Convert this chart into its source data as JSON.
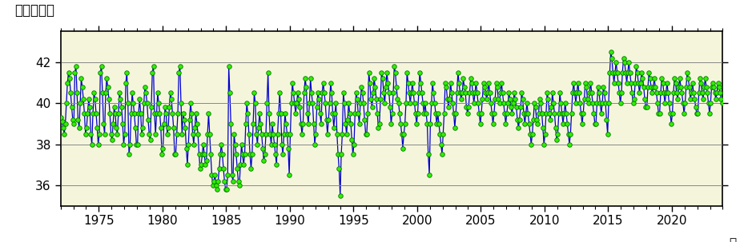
{
  "title_ylabel": "北緯（度）",
  "xlabel": "年",
  "ylim": [
    35.0,
    43.5
  ],
  "yticks": [
    36,
    38,
    40,
    42
  ],
  "xlim": [
    1972.0,
    2024.0
  ],
  "xticks": [
    1975,
    1980,
    1985,
    1990,
    1995,
    2000,
    2005,
    2010,
    2015,
    2020
  ],
  "bg_color": "#f5f5dc",
  "line_color": "#0000cc",
  "dot_color": "#33ee00",
  "dot_edge_color": "#007700",
  "figsize": [
    9.45,
    3.03
  ],
  "dpi": 100,
  "monthly_data": {
    "1972": [
      39.3,
      39.1,
      38.8,
      38.5,
      39.0,
      40.0,
      41.0,
      41.5,
      41.2,
      40.5,
      39.8,
      39.2
    ],
    "1973": [
      39.0,
      41.5,
      41.8,
      40.5,
      39.2,
      38.8,
      40.0,
      41.2,
      40.8,
      40.2,
      39.5,
      38.5
    ],
    "1974": [
      38.8,
      39.5,
      40.2,
      39.8,
      38.5,
      38.0,
      39.5,
      40.5,
      40.2,
      39.5,
      38.8,
      38.0
    ],
    "1975": [
      38.5,
      41.5,
      41.8,
      40.5,
      39.0,
      38.5,
      40.5,
      41.2,
      40.8,
      40.2,
      39.5,
      38.5
    ],
    "1976": [
      38.2,
      39.0,
      39.8,
      39.5,
      38.8,
      38.5,
      39.5,
      40.5,
      40.2,
      39.8,
      39.0,
      38.0
    ],
    "1977": [
      38.5,
      41.0,
      41.5,
      40.0,
      37.5,
      38.0,
      39.5,
      40.5,
      40.0,
      39.5,
      38.8,
      38.0
    ],
    "1978": [
      38.0,
      39.5,
      40.2,
      39.5,
      38.5,
      38.8,
      40.0,
      40.8,
      40.5,
      40.0,
      39.2,
      38.5
    ],
    "1979": [
      38.2,
      39.8,
      41.5,
      41.8,
      39.5,
      38.5,
      39.5,
      40.5,
      40.0,
      39.5,
      38.8,
      37.5
    ],
    "1980": [
      37.8,
      39.0,
      39.8,
      39.5,
      38.5,
      38.8,
      39.8,
      40.5,
      40.2,
      39.5,
      38.8,
      37.5
    ],
    "1981": [
      37.5,
      38.5,
      39.5,
      41.5,
      41.8,
      40.0,
      38.5,
      39.5,
      39.2,
      38.8,
      37.8,
      37.0
    ],
    "1982": [
      38.0,
      39.2,
      40.0,
      39.5,
      38.5,
      38.0,
      38.8,
      39.5,
      39.0,
      38.5,
      37.5,
      36.8
    ],
    "1983": [
      37.0,
      37.5,
      38.0,
      37.5,
      37.0,
      37.2,
      38.5,
      39.5,
      38.5,
      37.5,
      36.5,
      36.0
    ],
    "1984": [
      36.2,
      36.5,
      36.0,
      35.8,
      36.2,
      36.8,
      37.5,
      38.0,
      37.5,
      36.8,
      36.2,
      35.8
    ],
    "1985": [
      35.8,
      36.5,
      41.8,
      40.5,
      39.0,
      36.5,
      36.2,
      38.5,
      38.0,
      37.5,
      36.8,
      36.2
    ],
    "1986": [
      36.0,
      37.0,
      38.0,
      37.5,
      37.0,
      37.5,
      39.0,
      40.0,
      39.5,
      38.5,
      37.5,
      36.8
    ],
    "1987": [
      37.5,
      39.0,
      40.5,
      40.0,
      38.5,
      38.0,
      38.8,
      39.5,
      39.0,
      38.5,
      37.8,
      37.2
    ],
    "1988": [
      37.5,
      38.5,
      40.0,
      41.5,
      39.5,
      38.5,
      38.0,
      39.0,
      38.5,
      38.0,
      37.5,
      37.0
    ],
    "1989": [
      38.5,
      39.5,
      40.5,
      39.5,
      38.0,
      37.5,
      38.5,
      39.5,
      39.0,
      38.5,
      37.8,
      36.5
    ],
    "1990": [
      38.5,
      40.0,
      41.0,
      40.5,
      40.0,
      39.5,
      40.0,
      40.5,
      40.2,
      39.8,
      39.0,
      38.5
    ],
    "1991": [
      39.0,
      40.5,
      41.2,
      40.8,
      39.5,
      39.0,
      40.0,
      41.2,
      40.5,
      40.0,
      39.0,
      38.0
    ],
    "1992": [
      38.5,
      39.8,
      40.5,
      40.2,
      39.5,
      39.0,
      40.5,
      41.0,
      40.5,
      40.0,
      39.2,
      38.5
    ],
    "1993": [
      39.2,
      40.0,
      41.0,
      40.5,
      39.5,
      38.8,
      39.5,
      40.0,
      38.5,
      37.5,
      36.8,
      35.5
    ],
    "1994": [
      37.5,
      38.5,
      40.5,
      40.0,
      39.0,
      38.5,
      39.2,
      40.0,
      39.5,
      39.0,
      38.2,
      37.5
    ],
    "1995": [
      38.0,
      39.5,
      40.5,
      40.2,
      39.5,
      39.0,
      40.0,
      40.8,
      40.5,
      40.0,
      39.2,
      38.5
    ],
    "1996": [
      38.5,
      39.5,
      41.5,
      41.0,
      40.2,
      39.8,
      40.5,
      41.2,
      40.8,
      40.2,
      39.5,
      38.8
    ],
    "1997": [
      39.0,
      40.2,
      41.5,
      41.2,
      40.5,
      40.0,
      40.8,
      41.5,
      41.0,
      40.5,
      39.8,
      39.0
    ],
    "1998": [
      39.5,
      40.5,
      41.8,
      41.5,
      40.8,
      40.2,
      40.0,
      39.5,
      39.0,
      38.5,
      37.8,
      38.5
    ],
    "1999": [
      39.0,
      40.0,
      41.5,
      41.0,
      40.5,
      40.0,
      40.5,
      41.0,
      40.5,
      40.0,
      39.5,
      39.0
    ],
    "2000": [
      39.5,
      40.5,
      41.5,
      41.0,
      40.5,
      40.0,
      39.5,
      40.0,
      39.5,
      39.0,
      37.5,
      36.5
    ],
    "2001": [
      39.0,
      40.0,
      41.0,
      40.5,
      40.0,
      39.5,
      39.0,
      39.5,
      39.0,
      38.5,
      38.0,
      37.5
    ],
    "2002": [
      38.5,
      39.5,
      41.0,
      40.8,
      40.2,
      39.8,
      40.2,
      41.0,
      40.5,
      40.0,
      39.5,
      38.8
    ],
    "2003": [
      39.5,
      40.5,
      41.5,
      41.0,
      40.5,
      40.2,
      40.5,
      41.2,
      40.8,
      40.5,
      39.8,
      39.5
    ],
    "2004": [
      39.8,
      40.5,
      41.2,
      41.0,
      40.5,
      40.0,
      40.5,
      41.0,
      40.5,
      40.0,
      39.5,
      39.0
    ],
    "2005": [
      39.5,
      40.2,
      41.0,
      40.8,
      40.5,
      40.2,
      40.5,
      41.0,
      40.5,
      40.0,
      39.5,
      39.0
    ],
    "2006": [
      39.5,
      40.2,
      41.0,
      40.8,
      40.2,
      40.0,
      40.5,
      41.0,
      40.5,
      40.0,
      39.5,
      39.0
    ],
    "2007": [
      39.5,
      40.0,
      40.5,
      40.2,
      39.8,
      39.5,
      40.0,
      40.5,
      40.2,
      39.8,
      39.2,
      38.8
    ],
    "2008": [
      39.2,
      39.8,
      40.5,
      40.2,
      39.5,
      39.0,
      39.5,
      40.0,
      39.5,
      39.0,
      38.5,
      38.0
    ],
    "2009": [
      38.5,
      39.2,
      40.0,
      39.8,
      39.2,
      39.0,
      39.5,
      40.2,
      40.0,
      39.5,
      38.8,
      38.0
    ],
    "2010": [
      38.5,
      39.5,
      40.5,
      40.2,
      39.5,
      39.2,
      39.8,
      40.5,
      40.0,
      39.5,
      38.8,
      38.2
    ],
    "2011": [
      38.5,
      39.5,
      40.5,
      40.0,
      39.5,
      39.0,
      39.5,
      40.0,
      39.5,
      39.0,
      38.5,
      38.0
    ],
    "2012": [
      38.5,
      39.5,
      40.5,
      41.0,
      40.5,
      40.0,
      40.5,
      41.0,
      40.5,
      40.0,
      39.5,
      39.0
    ],
    "2013": [
      39.5,
      40.2,
      41.0,
      40.8,
      40.2,
      40.0,
      40.5,
      41.0,
      40.5,
      40.0,
      39.5,
      39.0
    ],
    "2014": [
      39.0,
      40.0,
      40.8,
      40.5,
      40.0,
      39.5,
      40.0,
      40.8,
      40.5,
      40.0,
      39.2,
      38.5
    ],
    "2015": [
      40.0,
      41.5,
      42.5,
      42.2,
      41.5,
      41.0,
      41.5,
      42.0,
      41.5,
      41.0,
      40.5,
      40.0
    ],
    "2016": [
      40.5,
      41.5,
      42.2,
      42.0,
      41.5,
      41.0,
      41.5,
      42.0,
      41.5,
      41.0,
      40.5,
      40.0
    ],
    "2017": [
      40.2,
      41.0,
      41.8,
      41.5,
      41.0,
      40.5,
      41.0,
      41.5,
      41.2,
      40.8,
      40.2,
      39.8
    ],
    "2018": [
      39.8,
      40.8,
      41.5,
      41.2,
      40.8,
      40.5,
      40.8,
      41.2,
      40.8,
      40.5,
      40.0,
      39.5
    ],
    "2019": [
      39.5,
      40.5,
      41.2,
      41.0,
      40.5,
      40.0,
      40.5,
      41.0,
      40.5,
      40.0,
      39.5,
      39.0
    ],
    "2020": [
      39.5,
      40.5,
      41.2,
      41.0,
      40.5,
      40.2,
      40.8,
      41.2,
      40.8,
      40.5,
      40.0,
      39.5
    ],
    "2021": [
      40.0,
      40.8,
      41.5,
      41.2,
      40.8,
      40.2,
      40.5,
      41.0,
      40.5,
      40.2,
      39.8,
      39.5
    ],
    "2022": [
      39.5,
      40.5,
      41.2,
      41.0,
      40.5,
      40.2,
      40.8,
      41.2,
      40.8,
      40.5,
      40.0,
      39.5
    ],
    "2023": [
      40.0,
      40.8,
      41.0,
      40.8,
      40.5,
      40.2,
      40.5,
      41.0,
      40.8,
      40.5,
      40.2,
      40.0
    ]
  }
}
